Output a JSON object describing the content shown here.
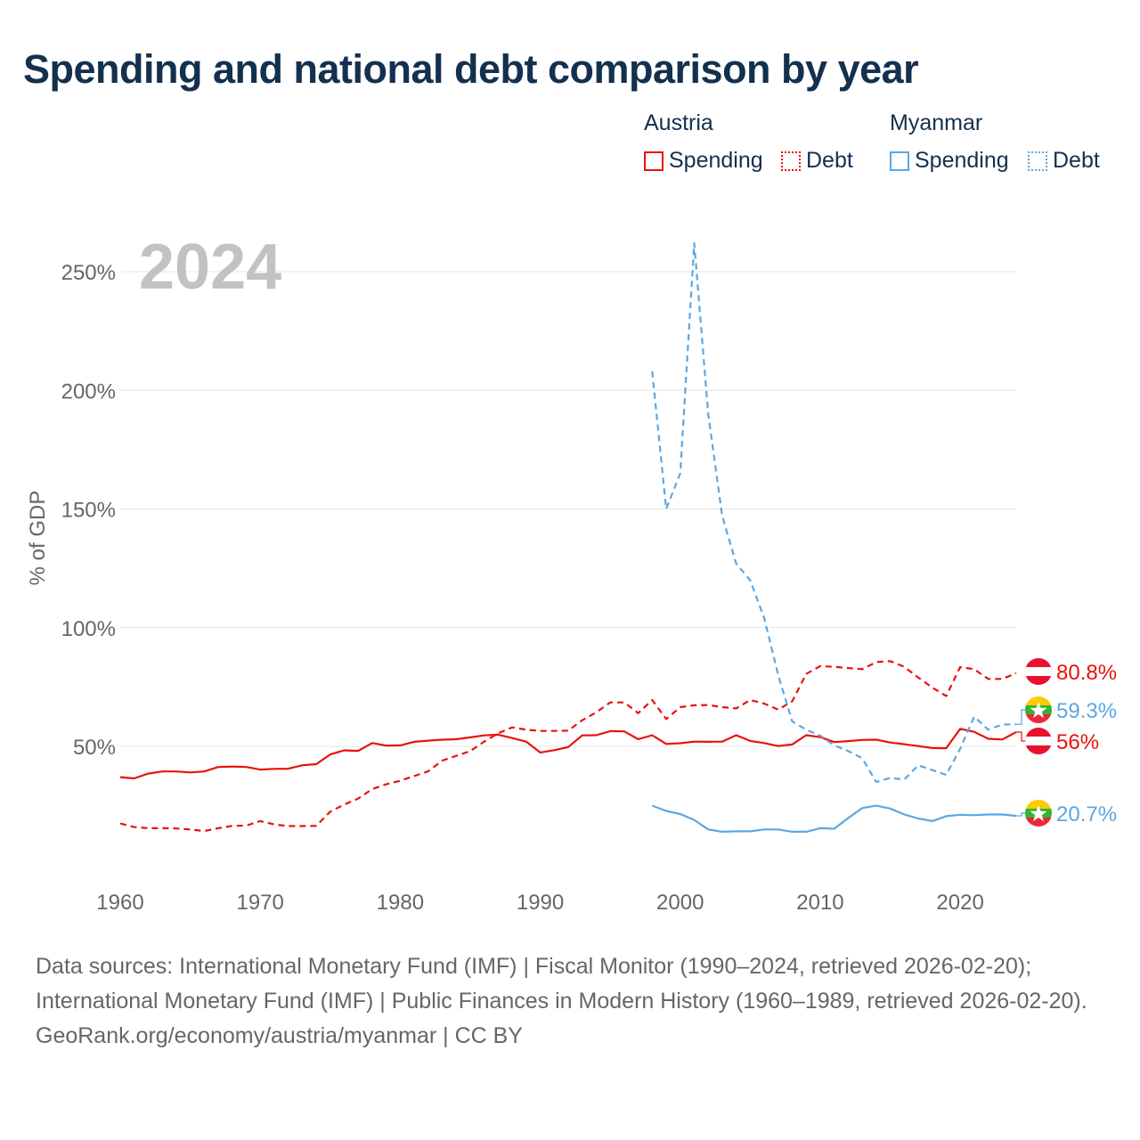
{
  "title": "Spending and national debt comparison by year",
  "legend": {
    "groups": [
      {
        "name": "Austria",
        "items": [
          {
            "label": "Spending"
          },
          {
            "label": "Debt"
          }
        ]
      },
      {
        "name": "Myanmar",
        "items": [
          {
            "label": "Spending"
          },
          {
            "label": "Debt"
          }
        ]
      }
    ]
  },
  "colors": {
    "austria": "#e8120c",
    "myanmar": "#5aa7e3",
    "year_watermark": "#c2c2c2",
    "grid": "#e6e6e6"
  },
  "footer": {
    "sources": "Data sources: International Monetary Fund (IMF) | Fiscal Monitor (1990–2024, retrieved 2026-02-20); International Monetary Fund (IMF) | Public Finances in Modern History (1960–1989, retrieved 2026-02-20).",
    "credit": "GeoRank.org/economy/austria/myanmar | CC BY"
  },
  "chart_data": {
    "type": "line",
    "title": "Spending and national debt comparison by year",
    "year_label": "2024",
    "ylabel": "% of GDP",
    "xlabel": "",
    "xlim": [
      1960,
      2024
    ],
    "ylim": [
      0,
      260
    ],
    "x_ticks": [
      1960,
      1970,
      1980,
      1990,
      2000,
      2010,
      2020
    ],
    "x_tick_labels": [
      "1960",
      "1970",
      "1980",
      "1990",
      "2000",
      "2010",
      "2020"
    ],
    "y_ticks": [
      50,
      100,
      150,
      200,
      250
    ],
    "y_tick_labels": [
      "50%",
      "100%",
      "150%",
      "200%",
      "250%"
    ],
    "series": [
      {
        "name": "Austria Spending",
        "country": "Austria",
        "flag": "austria",
        "style": "solid",
        "color": "#e8120c",
        "end_label": "56%",
        "x": [
          1960,
          1961,
          1962,
          1963,
          1964,
          1965,
          1966,
          1967,
          1968,
          1969,
          1970,
          1971,
          1972,
          1973,
          1974,
          1975,
          1976,
          1977,
          1978,
          1979,
          1980,
          1981,
          1982,
          1983,
          1984,
          1985,
          1986,
          1987,
          1988,
          1989,
          1990,
          1991,
          1992,
          1993,
          1994,
          1995,
          1996,
          1997,
          1998,
          1999,
          2000,
          2001,
          2002,
          2003,
          2004,
          2005,
          2006,
          2007,
          2008,
          2009,
          2010,
          2011,
          2012,
          2013,
          2014,
          2015,
          2016,
          2017,
          2018,
          2019,
          2020,
          2021,
          2022,
          2023,
          2024
        ],
        "values": [
          37,
          36.5,
          38.5,
          39.4,
          39.4,
          39,
          39.4,
          41.3,
          41.5,
          41.3,
          40.2,
          40.5,
          40.6,
          42,
          42.5,
          46.6,
          48.3,
          48.1,
          51.4,
          50.3,
          50.4,
          51.9,
          52.4,
          52.8,
          53,
          53.8,
          54.6,
          54.9,
          53.5,
          52,
          47.4,
          48.4,
          49.7,
          54.6,
          54.7,
          56.4,
          56.3,
          53,
          54.7,
          51,
          51.3,
          52,
          51.9,
          52,
          54.7,
          52.3,
          51.4,
          50.1,
          50.8,
          54.7,
          53.9,
          51.8,
          52.2,
          52.7,
          52.8,
          51.6,
          50.9,
          50.1,
          49.3,
          49.2,
          57.4,
          56.1,
          53.2,
          52.9,
          56
        ]
      },
      {
        "name": "Austria Debt",
        "country": "Austria",
        "flag": "austria",
        "style": "dashed",
        "color": "#e8120c",
        "end_label": "80.8%",
        "x": [
          1960,
          1961,
          1962,
          1963,
          1964,
          1965,
          1966,
          1967,
          1968,
          1969,
          1970,
          1971,
          1972,
          1973,
          1974,
          1975,
          1976,
          1977,
          1978,
          1979,
          1980,
          1981,
          1982,
          1983,
          1984,
          1985,
          1986,
          1987,
          1988,
          1989,
          1990,
          1991,
          1992,
          1993,
          1994,
          1995,
          1996,
          1997,
          1998,
          1999,
          2000,
          2001,
          2002,
          2003,
          2004,
          2005,
          2006,
          2007,
          2008,
          2009,
          2010,
          2011,
          2012,
          2013,
          2014,
          2015,
          2016,
          2017,
          2018,
          2019,
          2020,
          2021,
          2022,
          2023,
          2024
        ],
        "values": [
          17.5,
          16,
          15.5,
          15.5,
          15.4,
          15,
          14.3,
          15.5,
          16.5,
          16.6,
          18.5,
          17.1,
          16.4,
          16.4,
          16.5,
          22.5,
          25.5,
          28,
          32,
          34,
          35.5,
          37.5,
          39.5,
          44,
          46,
          48,
          52,
          55.5,
          58,
          57,
          56.5,
          56.5,
          56.6,
          61,
          64.3,
          68.5,
          68.5,
          64,
          69.5,
          61.5,
          66.5,
          67.3,
          67.4,
          66.5,
          66,
          69.5,
          68,
          65.5,
          69,
          80.5,
          83.8,
          83.5,
          83,
          82.5,
          85.5,
          85.9,
          83.5,
          79,
          74.8,
          71.2,
          83.4,
          82.5,
          78.4,
          78.4,
          80.8
        ]
      },
      {
        "name": "Myanmar Spending",
        "country": "Myanmar",
        "flag": "myanmar",
        "style": "solid",
        "color": "#5aa7e3",
        "end_label": "20.7%",
        "x": [
          1998,
          1999,
          2000,
          2001,
          2002,
          2003,
          2004,
          2005,
          2006,
          2007,
          2008,
          2009,
          2010,
          2011,
          2012,
          2013,
          2014,
          2015,
          2016,
          2017,
          2018,
          2019,
          2020,
          2021,
          2022,
          2023,
          2024
        ],
        "values": [
          25,
          22.8,
          21.5,
          19,
          15,
          14,
          14.2,
          14.2,
          15,
          15,
          14,
          14,
          15.5,
          15.3,
          19.8,
          24,
          25,
          23.8,
          21.3,
          19.6,
          18.5,
          20.6,
          21.2,
          21,
          21.3,
          21.3,
          20.7
        ]
      },
      {
        "name": "Myanmar Debt",
        "country": "Myanmar",
        "flag": "myanmar",
        "style": "dashed",
        "color": "#5aa7e3",
        "end_label": "59.3%",
        "x": [
          1998,
          1999,
          2000,
          2001,
          2002,
          2003,
          2004,
          2005,
          2006,
          2007,
          2008,
          2009,
          2010,
          2011,
          2012,
          2013,
          2014,
          2015,
          2016,
          2017,
          2018,
          2019,
          2020,
          2021,
          2022,
          2023,
          2024
        ],
        "values": [
          208,
          150,
          165,
          262,
          190,
          147,
          127,
          120,
          104,
          80,
          60.5,
          57,
          54.5,
          50.4,
          48,
          45,
          35,
          36.7,
          36,
          42,
          40,
          38,
          49,
          62.5,
          57,
          59.2,
          59.3
        ]
      }
    ]
  }
}
